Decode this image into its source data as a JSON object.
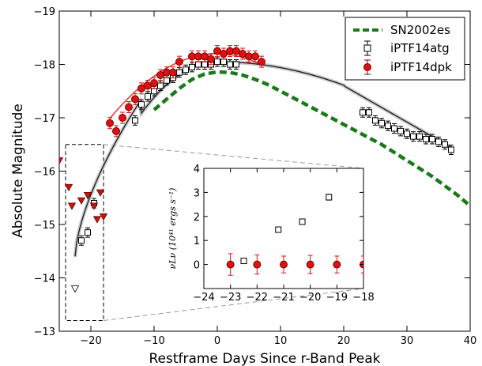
{
  "chart_data": {
    "type": "scatter",
    "xlabel": "Restframe Days Since r-Band Peak",
    "ylabel": "Absolute Magnitude",
    "xlim": [
      -25,
      40
    ],
    "ylim": [
      -19,
      -13
    ],
    "y_inverted": true,
    "x_ticks": [
      "−20",
      "−10",
      "0",
      "10",
      "20",
      "30",
      "40"
    ],
    "x_tick_values": [
      -20,
      -10,
      0,
      10,
      20,
      30,
      40
    ],
    "y_ticks": [
      "−19",
      "−18",
      "−17",
      "−16",
      "−15",
      "−14",
      "−13"
    ],
    "y_tick_values": [
      -19,
      -18,
      -17,
      -16,
      -15,
      -14,
      -13
    ],
    "legend_position": "top-right",
    "legend": [
      "SN2002es",
      "iPTF14atg",
      "iPTF14dpk"
    ],
    "colors": {
      "sn2002es": "#1a7a1a",
      "atg": "#000000",
      "dpk_fill": "#dd1111",
      "dpk_edge": "#7a0000",
      "dpk_fit": "#e84040",
      "atg_fit": "#222222",
      "zoom_box": "#555555"
    },
    "series": [
      {
        "name": "SN2002es",
        "style": "dashed-line",
        "x": [
          -10,
          -8,
          -6,
          -4,
          -2,
          0,
          2,
          4,
          6,
          8,
          10,
          14,
          18,
          22,
          26,
          30,
          34,
          38,
          40
        ],
        "y": [
          -17.15,
          -17.35,
          -17.55,
          -17.72,
          -17.82,
          -17.86,
          -17.85,
          -17.8,
          -17.72,
          -17.62,
          -17.5,
          -17.25,
          -17.0,
          -16.75,
          -16.5,
          -16.2,
          -15.9,
          -15.55,
          -15.35
        ]
      },
      {
        "name": "iPTF14atg",
        "style": "open-squares",
        "x": [
          -21.5,
          -20.5,
          -19.5,
          -13,
          -12,
          -11,
          -10,
          -9,
          -8,
          -7,
          -6,
          -5,
          -4,
          -3,
          -2,
          -1,
          0,
          1,
          2,
          3,
          23,
          24,
          25,
          26,
          27,
          28,
          29,
          30,
          31,
          32,
          33,
          34,
          35,
          36,
          37
        ],
        "y": [
          -14.7,
          -14.85,
          -15.4,
          -16.95,
          -17.25,
          -17.4,
          -17.5,
          -17.6,
          -17.7,
          -17.75,
          -17.85,
          -17.9,
          -17.95,
          -18.0,
          -18.0,
          -18.0,
          -18.05,
          -18.05,
          -18.0,
          -18.0,
          -17.1,
          -17.1,
          -16.95,
          -16.9,
          -16.85,
          -16.8,
          -16.75,
          -16.7,
          -16.65,
          -16.65,
          -16.6,
          -16.6,
          -16.55,
          -16.5,
          -16.4
        ]
      },
      {
        "name": "iPTF14dpk",
        "style": "filled-circles",
        "x": [
          -17,
          -16,
          -15,
          -14,
          -13,
          -12,
          -11,
          -10,
          -9,
          -8,
          -7,
          -6,
          -4,
          -3,
          -2,
          -1,
          0,
          1,
          2,
          3,
          4,
          5,
          6,
          7
        ],
        "y": [
          -16.9,
          -16.75,
          -17.0,
          -17.2,
          -17.35,
          -17.55,
          -17.6,
          -17.65,
          -17.8,
          -17.85,
          -17.85,
          -18.05,
          -18.15,
          -18.15,
          -18.15,
          -18.1,
          -18.25,
          -18.2,
          -18.25,
          -18.25,
          -18.2,
          -18.15,
          -18.15,
          -18.05
        ]
      },
      {
        "name": "",
        "style": "upper-limits",
        "x": [
          -25,
          -23.5,
          -23,
          -22.5,
          -21.5,
          -20.5,
          -19.5,
          -19,
          -18.5,
          -18
        ],
        "y": [
          -16.2,
          -15.7,
          -15.35,
          -13.8,
          -15.45,
          -15.55,
          -15.35,
          -15.1,
          -15.6,
          -15.15
        ]
      }
    ],
    "inset": {
      "xlim": [
        -24,
        -18
      ],
      "ylim": [
        -1,
        4
      ],
      "x_ticks": [
        "−24",
        "−23",
        "−22",
        "−21",
        "−20",
        "−19",
        "−18"
      ],
      "x_tick_values": [
        -24,
        -23,
        -22,
        -21,
        -20,
        -19,
        -18
      ],
      "y_ticks": [
        "0",
        "1",
        "2",
        "3",
        "4"
      ],
      "y_tick_values": [
        0,
        1,
        2,
        3,
        4
      ],
      "ylabel": "νLν (10⁴¹ ergs s⁻¹)",
      "series": [
        {
          "name": "iPTF14atg",
          "x": [
            -22.5,
            -21.2,
            -20.3,
            -19.3
          ],
          "y": [
            0.15,
            1.45,
            1.78,
            2.8
          ],
          "err": [
            0.08,
            0.08,
            0.1,
            0.12
          ]
        },
        {
          "name": "iPTF14dpk",
          "x": [
            -23,
            -22,
            -21,
            -20,
            -19,
            -18
          ],
          "y": [
            0.0,
            0.0,
            0.0,
            0.0,
            0.0,
            0.0
          ],
          "err": [
            0.45,
            0.4,
            0.35,
            0.38,
            0.35,
            0.35
          ]
        }
      ]
    }
  }
}
